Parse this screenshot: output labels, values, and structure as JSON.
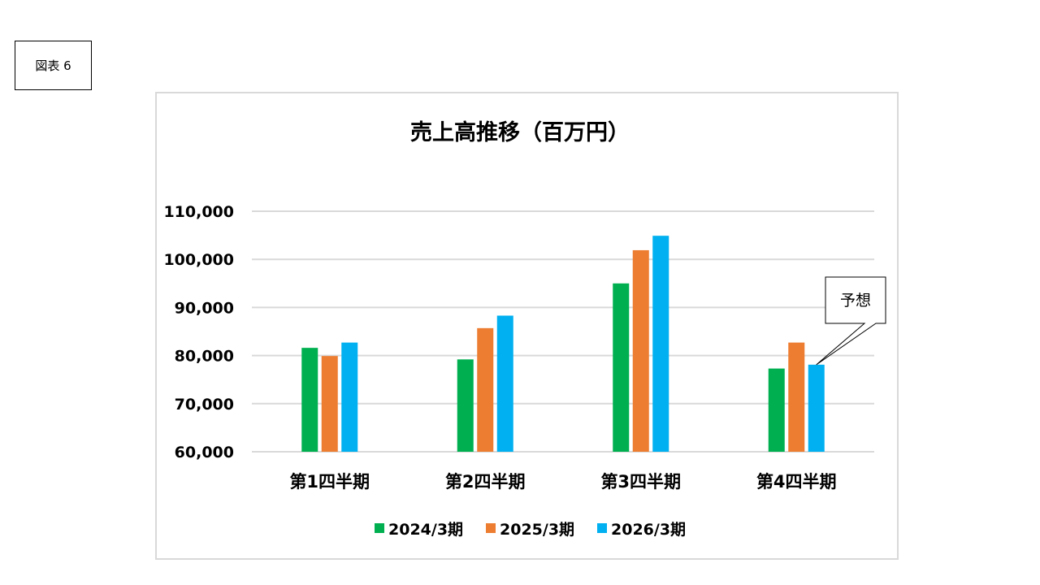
{
  "figure_label": "図表 6",
  "colors": {
    "series_2024": "#00b050",
    "series_2025": "#ed7d31",
    "series_2026": "#00b0f0",
    "grid": "#d9d9d9"
  },
  "chart_data": {
    "type": "bar",
    "title": "売上高推移（百万円）",
    "categories": [
      "第1四半期",
      "第2四半期",
      "第3四半期",
      "第4四半期"
    ],
    "series": [
      {
        "name": "2024/3期",
        "values": [
          81600,
          79200,
          95000,
          77300
        ]
      },
      {
        "name": "2025/3期",
        "values": [
          79900,
          85700,
          101900,
          82700
        ]
      },
      {
        "name": "2026/3期",
        "values": [
          82700,
          88300,
          104900,
          78100
        ]
      }
    ],
    "ylim": [
      60000,
      110000
    ],
    "yticks": [
      60000,
      70000,
      80000,
      90000,
      100000,
      110000
    ],
    "ytick_labels": [
      "60,000",
      "70,000",
      "80,000",
      "90,000",
      "100,000",
      "110,000"
    ],
    "grid": true,
    "legend_position": "bottom",
    "annotation": {
      "text": "予想",
      "series_index": 2,
      "category_index": 3
    }
  }
}
